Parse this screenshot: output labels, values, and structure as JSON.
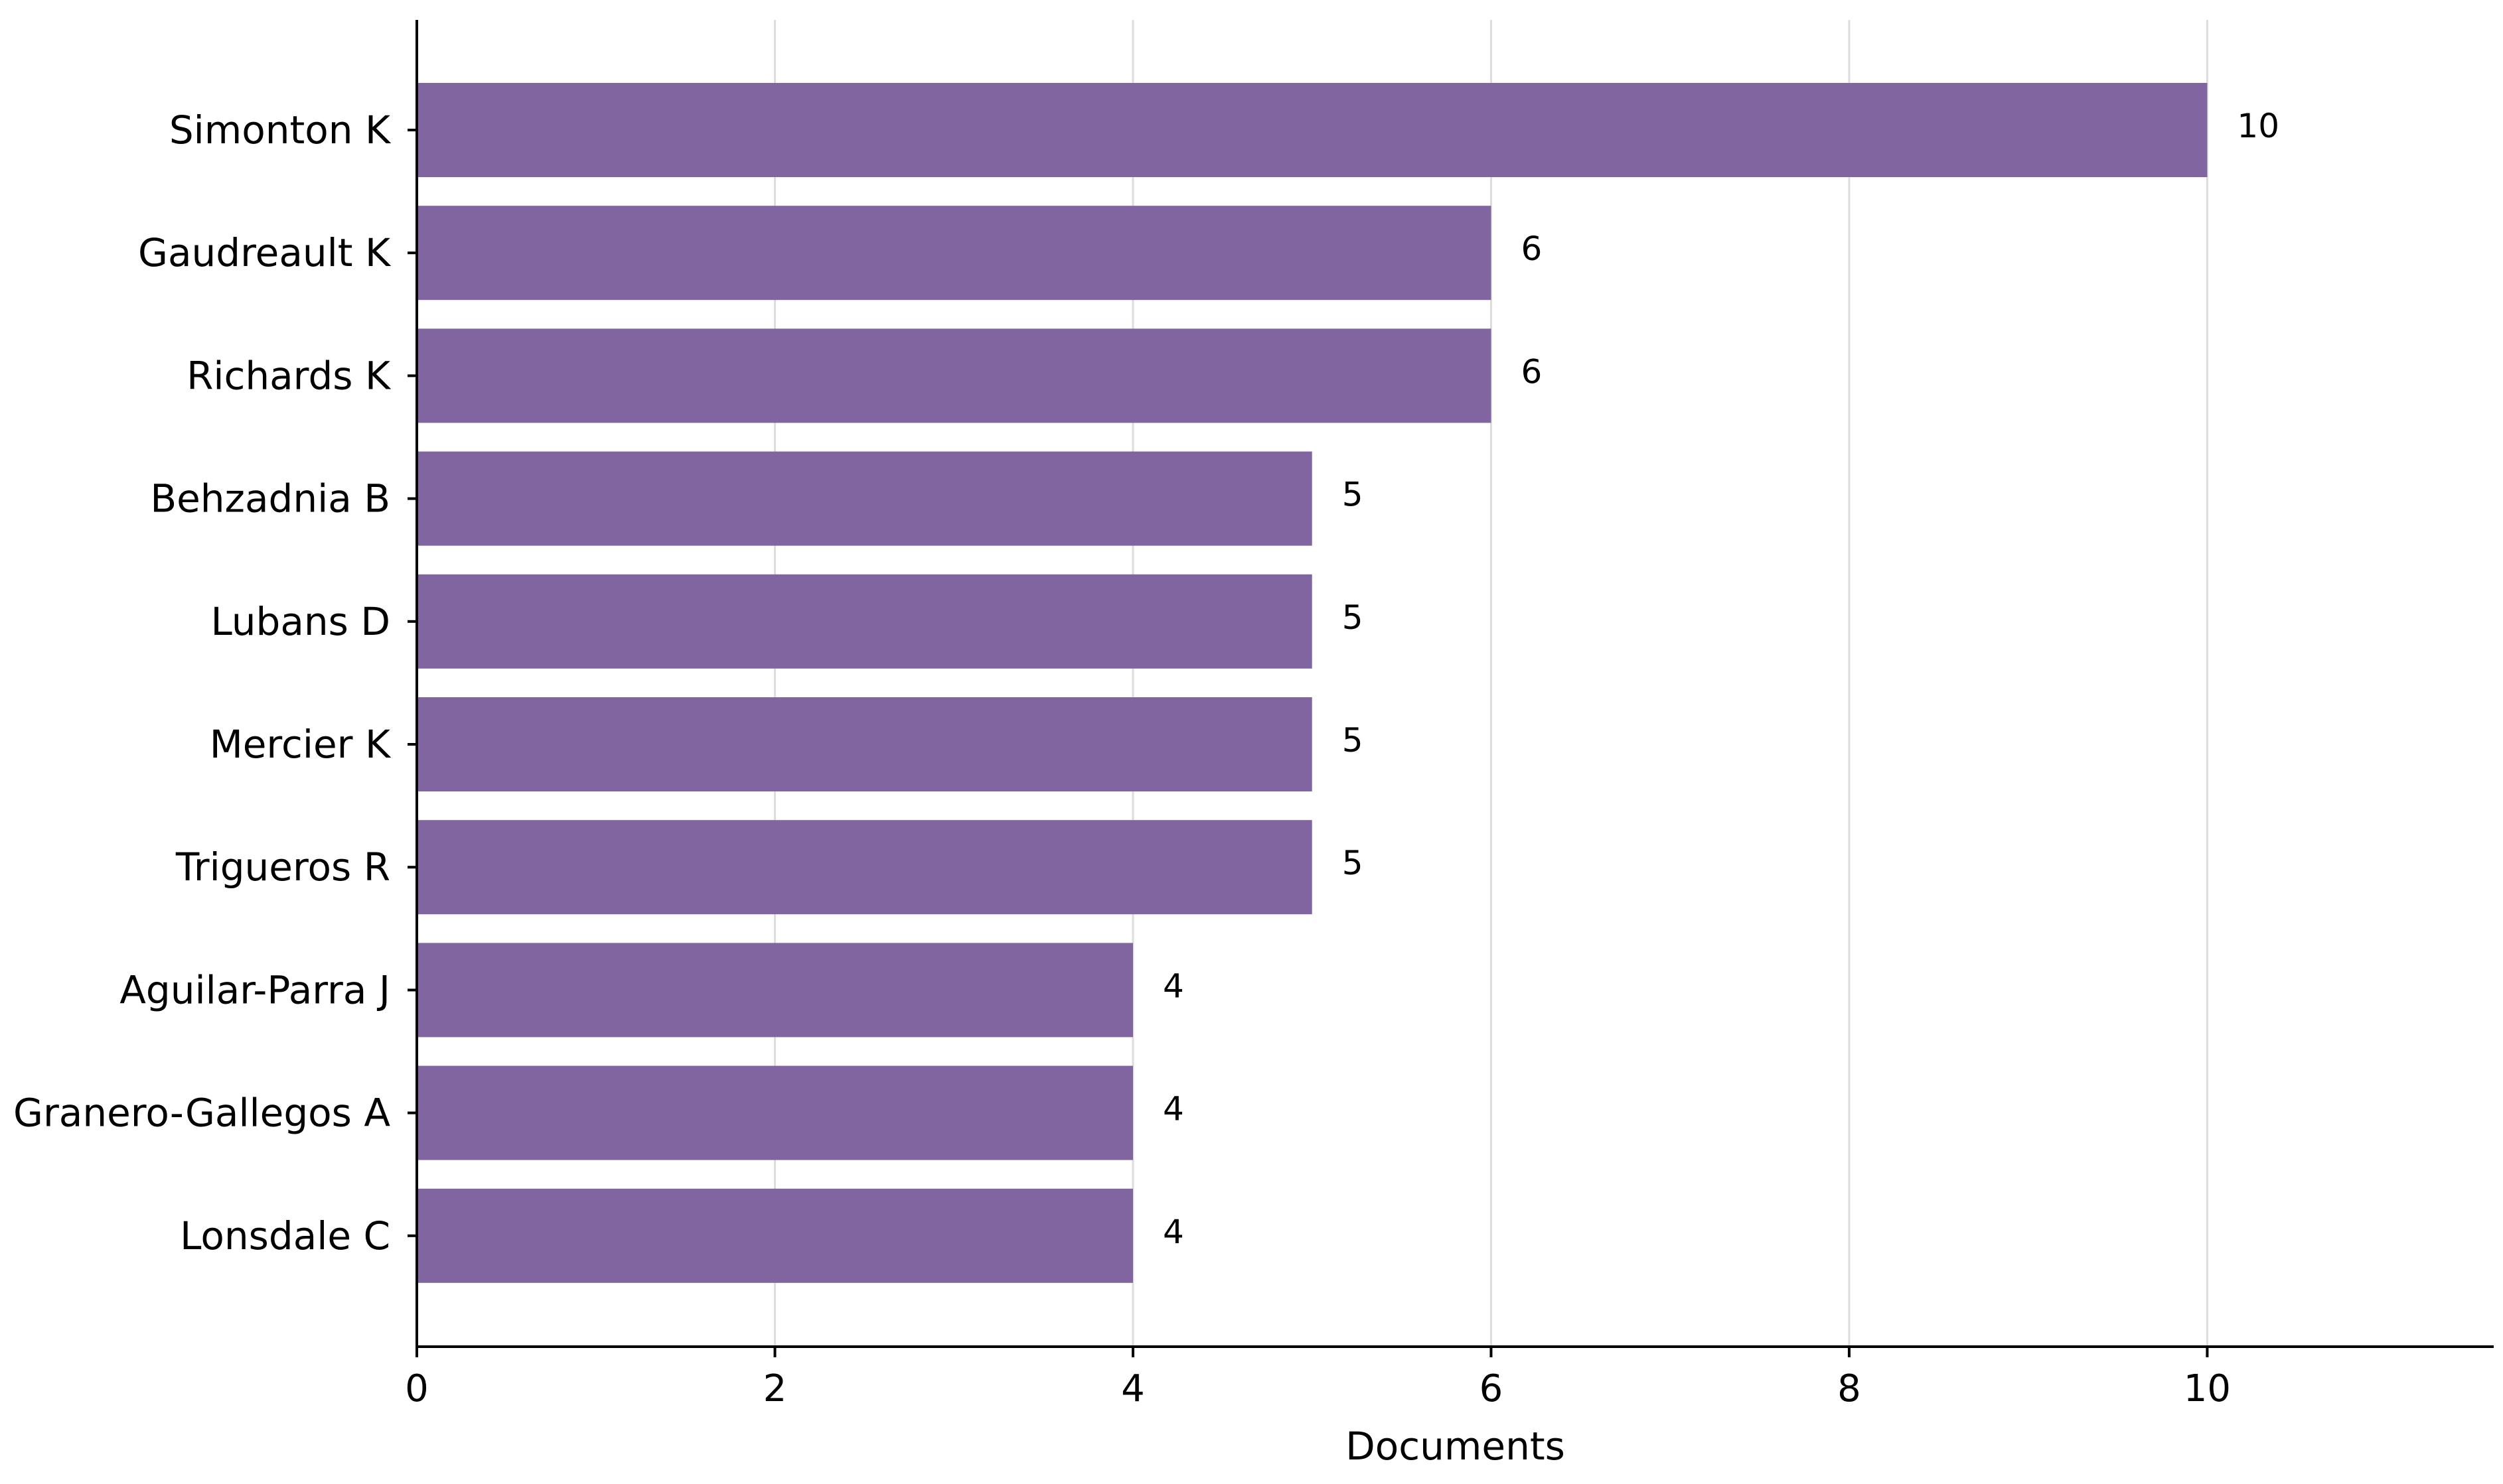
{
  "chart_data": {
    "type": "bar",
    "orientation": "horizontal",
    "title": "",
    "xlabel": "Documents",
    "ylabel": "",
    "categories": [
      "Simonton K",
      "Gaudreault K",
      "Richards K",
      "Behzadnia B",
      "Lubans D",
      "Mercier K",
      "Trigueros R",
      "Aguilar-Parra J",
      "Granero-Gallegos A",
      "Lonsdale C"
    ],
    "values": [
      10,
      6,
      6,
      5,
      5,
      5,
      5,
      4,
      4,
      4
    ],
    "value_labels": [
      "10",
      "6",
      "6",
      "5",
      "5",
      "5",
      "5",
      "4",
      "4",
      "4"
    ],
    "xlim": [
      0,
      11.6
    ],
    "x_ticks": [
      0,
      2,
      4,
      6,
      8,
      10
    ],
    "x_tick_labels": [
      "0",
      "2",
      "4",
      "6",
      "8",
      "10"
    ],
    "grid": "vertical",
    "bar_color": "#8065a0",
    "grid_color": "#dddddd",
    "axis_color": "#000000"
  }
}
